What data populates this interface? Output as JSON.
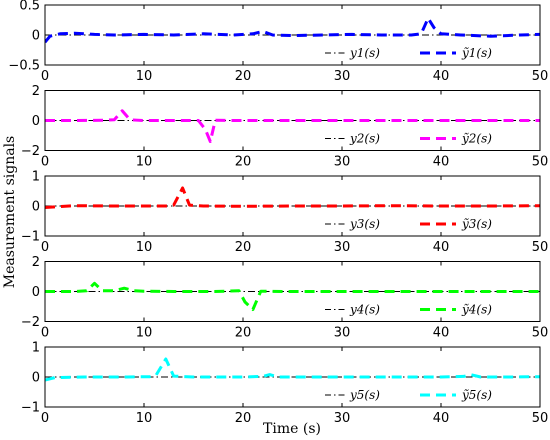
{
  "figure": {
    "xlabel": "Time (s)",
    "ylabel": "Measurement signals"
  },
  "chart_data": [
    {
      "type": "line",
      "xlim": [
        0,
        50
      ],
      "ylim": [
        -0.5,
        0.5
      ],
      "xticks": [
        0,
        10,
        20,
        30,
        40,
        50
      ],
      "yticks": [
        -0.5,
        0,
        0.5
      ],
      "grid": false,
      "legend_position": "bottom-right",
      "series": [
        {
          "name": "y1(s)",
          "color": "#000000",
          "style": "dashdot",
          "x": [
            0,
            50
          ],
          "y": [
            0,
            0
          ]
        },
        {
          "name": "ỹ1(s)",
          "color": "#0000ff",
          "style": "dashed",
          "x": [
            0,
            0.5,
            1.5,
            3,
            5,
            7,
            10,
            13,
            16,
            19,
            21,
            22,
            23,
            25,
            28,
            31,
            34,
            37,
            38,
            38.7,
            39.3,
            40,
            42,
            45,
            48,
            50
          ],
          "y": [
            -0.12,
            -0.02,
            0.02,
            0.03,
            0.01,
            0.0,
            0.01,
            0.0,
            0.02,
            0.0,
            0.02,
            0.06,
            0.0,
            -0.01,
            0.0,
            0.01,
            0.0,
            0.0,
            0.02,
            0.28,
            0.12,
            0.02,
            0.0,
            -0.02,
            0.0,
            0.01
          ]
        }
      ]
    },
    {
      "type": "line",
      "xlim": [
        0,
        50
      ],
      "ylim": [
        -2,
        2
      ],
      "xticks": [
        0,
        10,
        20,
        30,
        40,
        50
      ],
      "yticks": [
        -2,
        0,
        2
      ],
      "grid": false,
      "legend_position": "bottom-right",
      "series": [
        {
          "name": "y2(s)",
          "color": "#000000",
          "style": "dashdot",
          "x": [
            0,
            50
          ],
          "y": [
            0,
            0
          ]
        },
        {
          "name": "ỹ2(s)",
          "color": "#ff00ff",
          "style": "dashed",
          "x": [
            0,
            3,
            6,
            7,
            7.8,
            8.6,
            10,
            13,
            15.5,
            16.2,
            16.7,
            17.2,
            18.5,
            22,
            26,
            30,
            35,
            40,
            45,
            50
          ],
          "y": [
            0,
            0,
            0.02,
            0.05,
            0.65,
            0.05,
            0,
            0,
            0,
            -0.6,
            -1.4,
            0.02,
            0,
            0,
            0,
            0,
            0,
            0,
            0,
            0
          ]
        }
      ]
    },
    {
      "type": "line",
      "xlim": [
        0,
        50
      ],
      "ylim": [
        -1,
        1
      ],
      "xticks": [
        0,
        10,
        20,
        30,
        40,
        50
      ],
      "yticks": [
        -1,
        0,
        1
      ],
      "grid": false,
      "legend_position": "bottom-right",
      "series": [
        {
          "name": "y3(s)",
          "color": "#000000",
          "style": "dashdot",
          "x": [
            0,
            50
          ],
          "y": [
            0,
            0
          ]
        },
        {
          "name": "ỹ3(s)",
          "color": "#ff0000",
          "style": "dashed",
          "x": [
            0,
            3,
            7,
            10,
            12.5,
            13,
            13.9,
            14.6,
            16,
            20,
            25,
            30,
            35,
            40,
            45,
            50
          ],
          "y": [
            -0.05,
            0.01,
            0.0,
            0.0,
            0.0,
            0.03,
            0.6,
            0.03,
            0.0,
            -0.01,
            0.0,
            0.0,
            0.01,
            0.0,
            0.0,
            0.01
          ]
        }
      ]
    },
    {
      "type": "line",
      "xlim": [
        0,
        50
      ],
      "ylim": [
        -2,
        2
      ],
      "xticks": [
        0,
        10,
        20,
        30,
        40,
        50
      ],
      "yticks": [
        -2,
        0,
        2
      ],
      "grid": false,
      "legend_position": "bottom-right",
      "series": [
        {
          "name": "y4(s)",
          "color": "#000000",
          "style": "dashdot",
          "x": [
            0,
            50
          ],
          "y": [
            0,
            0
          ]
        },
        {
          "name": "ỹ4(s)",
          "color": "#00ff00",
          "style": "dashed",
          "x": [
            0,
            3,
            4.2,
            5,
            5.8,
            7,
            8,
            9,
            10,
            13,
            17,
            19.6,
            20.2,
            21,
            21.8,
            24,
            28,
            32,
            36,
            40,
            45,
            50
          ],
          "y": [
            0,
            0,
            0.05,
            0.55,
            0.05,
            0.05,
            0.22,
            0.05,
            0.02,
            0,
            0,
            0.05,
            -0.7,
            -1.2,
            0.02,
            0,
            0,
            0,
            0,
            0,
            0,
            0
          ]
        }
      ]
    },
    {
      "type": "line",
      "xlim": [
        0,
        50
      ],
      "ylim": [
        -1,
        1
      ],
      "xticks": [
        0,
        10,
        20,
        30,
        40,
        50
      ],
      "yticks": [
        -1,
        0,
        1
      ],
      "grid": false,
      "legend_position": "bottom-right",
      "series": [
        {
          "name": "y5(s)",
          "color": "#000000",
          "style": "dashdot",
          "x": [
            0,
            50
          ],
          "y": [
            0,
            0
          ]
        },
        {
          "name": "ỹ5(s)",
          "color": "#00ffff",
          "style": "dashed",
          "x": [
            0,
            1,
            4,
            8,
            10.6,
            11.2,
            12.2,
            13,
            15,
            20,
            22,
            22.7,
            23.5,
            27,
            32,
            37,
            40,
            42.3,
            43,
            44,
            47,
            50
          ],
          "y": [
            -0.1,
            -0.02,
            0.0,
            0.0,
            0.01,
            0.05,
            0.6,
            0.03,
            0.0,
            0.0,
            0.02,
            0.08,
            0.0,
            0.0,
            0.0,
            0.0,
            0.0,
            0.02,
            0.08,
            0.0,
            0.0,
            0.01
          ]
        }
      ]
    }
  ]
}
